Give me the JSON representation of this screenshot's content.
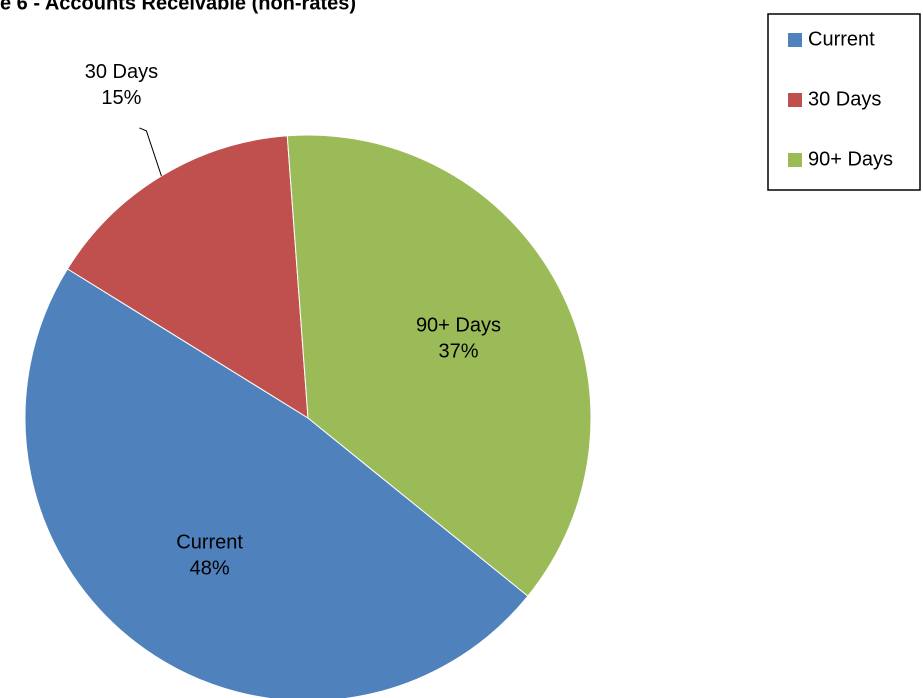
{
  "chart_data": {
    "type": "pie",
    "title": "e 6 - Accounts Receivable (non-rates)",
    "categories": [
      "Current",
      "30 Days",
      "90+ Days"
    ],
    "values": [
      48,
      15,
      37
    ],
    "value_labels": [
      "48%",
      "15%",
      "37%"
    ],
    "colors": [
      "#4f81bd",
      "#c0504d",
      "#9bbb59"
    ],
    "legend": "upper right"
  }
}
